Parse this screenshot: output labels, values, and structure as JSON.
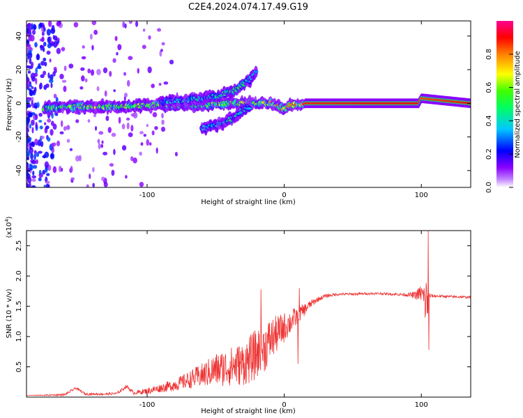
{
  "title": "C2E4.2024.074.17.49.G19",
  "chart_data": [
    {
      "type": "heatmap",
      "xlabel": "Height of straight line (km)",
      "ylabel": "Frequency (Hz)",
      "xlim": [
        -188,
        136
      ],
      "ylim": [
        -50,
        49
      ],
      "x_ticks": [
        -100,
        0,
        100
      ],
      "y_ticks": [
        -40,
        -20,
        0,
        20,
        40
      ],
      "colorbar": {
        "label": "Normalized spectral amplitude",
        "range": [
          0,
          1
        ],
        "ticks": [
          "0.0",
          "0.2",
          "0.4",
          "0.6",
          "0.8"
        ],
        "colormap": [
          "#ffffff",
          "#8a00ff",
          "#0000ff",
          "#00d0ff",
          "#00ff00",
          "#ffff00",
          "#ff8000",
          "#ff0000",
          "#ff00a0"
        ]
      },
      "features": [
        {
          "name": "main-ridge",
          "x": [
            -175,
            -150,
            -120,
            -90,
            -60,
            -40,
            -25,
            -10,
            0,
            5,
            15,
            60,
            98,
            100,
            136
          ],
          "y": [
            -3,
            -2,
            -2,
            -1,
            -1,
            0,
            0,
            0,
            -3,
            -1,
            0,
            0,
            0,
            3,
            0
          ],
          "amplitude": [
            0.55,
            0.6,
            0.6,
            0.6,
            0.6,
            0.6,
            0.65,
            0.7,
            0.75,
            0.8,
            0.88,
            0.9,
            0.9,
            0.85,
            0.9
          ]
        },
        {
          "name": "upper-branch",
          "x": [
            -90,
            -70,
            -50,
            -35,
            -25,
            -20
          ],
          "y": [
            1,
            2,
            4,
            8,
            14,
            19
          ],
          "amplitude": [
            0.35,
            0.4,
            0.45,
            0.5,
            0.4,
            0.3
          ]
        },
        {
          "name": "lower-branch",
          "x": [
            -60,
            -50,
            -40,
            -30,
            -25
          ],
          "y": [
            -15,
            -13,
            -10,
            -4,
            -2
          ],
          "amplitude": [
            0.35,
            0.4,
            0.45,
            0.4,
            0.35
          ]
        }
      ]
    },
    {
      "type": "line",
      "xlabel": "Height of straight line (km)",
      "ylabel": "SNR (10 * v/v)",
      "ylabel_multiplier": "(x10^4)",
      "xlim": [
        -188,
        136
      ],
      "ylim": [
        0,
        2.75
      ],
      "x_ticks": [
        -100,
        0,
        100
      ],
      "y_ticks": [
        "0.5",
        "1.0",
        "1.5",
        "2.0",
        "2.5"
      ],
      "series": [
        {
          "color": "#ee3030",
          "x": [
            -188,
            -175,
            -160,
            -152,
            -145,
            -130,
            -122,
            -115,
            -110,
            -100,
            -90,
            -80,
            -70,
            -60,
            -50,
            -40,
            -30,
            -25,
            -20,
            -15,
            -10,
            -5,
            0,
            5,
            10,
            15,
            20,
            25,
            30,
            40,
            50,
            60,
            70,
            80,
            90,
            95,
            100,
            102,
            104,
            106,
            110,
            120,
            136
          ],
          "y": [
            0.03,
            0.03,
            0.04,
            0.15,
            0.05,
            0.05,
            0.06,
            0.18,
            0.07,
            0.1,
            0.15,
            0.2,
            0.28,
            0.36,
            0.45,
            0.5,
            0.55,
            0.62,
            0.72,
            0.8,
            0.95,
            1.05,
            1.15,
            1.25,
            1.35,
            1.45,
            1.55,
            1.62,
            1.67,
            1.7,
            1.7,
            1.71,
            1.71,
            1.7,
            1.69,
            1.68,
            1.72,
            1.6,
            1.55,
            1.67,
            1.67,
            1.66,
            1.65
          ],
          "noise": [
            0.0,
            0.01,
            0.02,
            0.02,
            0.02,
            0.02,
            0.02,
            0.03,
            0.03,
            0.05,
            0.07,
            0.1,
            0.14,
            0.2,
            0.28,
            0.32,
            0.36,
            0.4,
            0.42,
            0.42,
            0.36,
            0.3,
            0.25,
            0.2,
            0.15,
            0.1,
            0.06,
            0.04,
            0.03,
            0.02,
            0.02,
            0.02,
            0.02,
            0.02,
            0.03,
            0.06,
            0.15,
            0.3,
            0.5,
            0.04,
            0.02,
            0.02,
            0.02
          ]
        }
      ],
      "spikes": [
        {
          "x": -17,
          "y": 1.78
        },
        {
          "x": 11,
          "y": 1.8
        },
        {
          "x": 10,
          "y": 0.55
        },
        {
          "x": 105,
          "y": 2.75
        },
        {
          "x": 105.5,
          "y": 0.78
        }
      ]
    }
  ]
}
